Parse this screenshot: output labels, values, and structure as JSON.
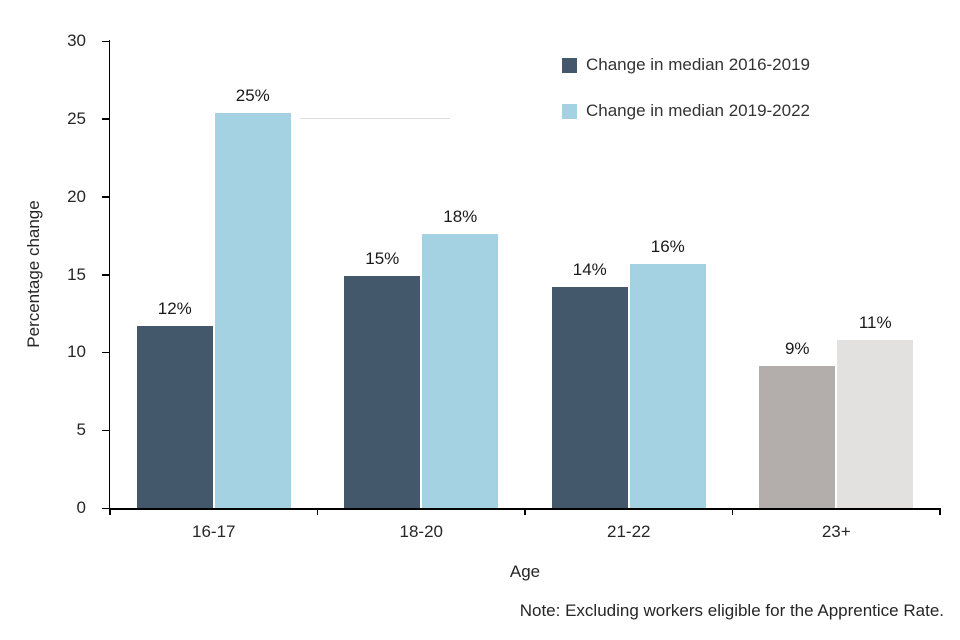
{
  "chart_data": {
    "type": "bar",
    "title": "",
    "ylabel": "Percentage change",
    "xlabel": "Age",
    "ylim": [
      0,
      30
    ],
    "yticks": [
      0,
      5,
      10,
      15,
      20,
      25,
      30
    ],
    "grid": false,
    "legend_position": "top-right",
    "categories": [
      "16-17",
      "18-20",
      "21-22",
      "23+"
    ],
    "series": [
      {
        "name": "Change in median 2016-2019",
        "color": "#44586c",
        "values": [
          11.7,
          14.9,
          14.2,
          9.1
        ],
        "labels": [
          "12%",
          "15%",
          "14%",
          "9%"
        ]
      },
      {
        "name": "Change in median 2019-2022",
        "color": "#a5d2e2",
        "values": [
          25.4,
          17.6,
          15.7,
          10.8
        ],
        "labels": [
          "25%",
          "18%",
          "16%",
          "11%"
        ]
      }
    ],
    "bar_color_overrides": {
      "23+": [
        "#b3aeab",
        "#e2e1e0"
      ]
    },
    "note": "Note: Excluding workers eligible for the Apprentice Rate."
  }
}
